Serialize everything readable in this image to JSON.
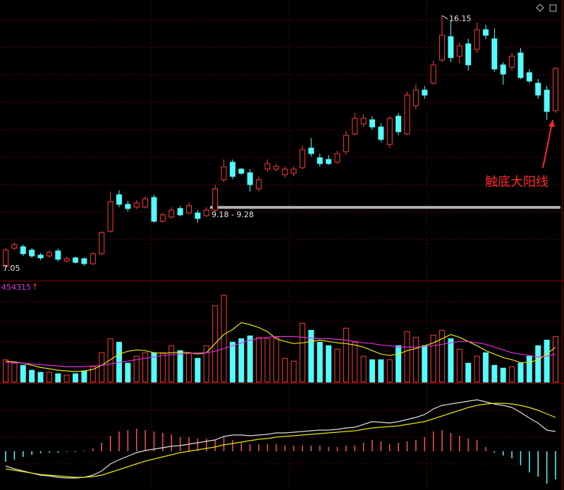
{
  "chart_data": [
    {
      "type": "candlestick",
      "open": [
        7.1,
        7.76,
        7.81,
        7.69,
        7.51,
        7.48,
        7.66,
        7.3,
        7.41,
        7.38,
        7.2,
        7.56,
        8.37,
        9.69,
        9.34,
        9.24,
        9.24,
        9.59,
        8.73,
        8.88,
        9.19,
        9.03,
        9.03,
        8.93,
        9.13,
        10.23,
        10.86,
        10.61,
        10.48,
        9.9,
        10.61,
        10.61,
        10.41,
        10.46,
        10.66,
        11.37,
        11.02,
        10.96,
        10.86,
        11.24,
        11.88,
        12.24,
        12.39,
        12.13,
        11.5,
        12.52,
        11.88,
        12.9,
        13.46,
        13.71,
        14.55,
        15.39,
        14.68,
        15.13,
        14.93,
        15.64,
        15.31,
        14.37,
        14.29,
        14.8,
        14.09,
        13.71,
        13.46,
        12.72
      ],
      "high": [
        7.76,
        7.97,
        7.89,
        7.76,
        7.58,
        7.69,
        7.74,
        7.46,
        7.46,
        7.43,
        7.61,
        8.37,
        9.8,
        9.85,
        9.47,
        9.49,
        9.64,
        9.69,
        9.03,
        9.24,
        9.29,
        9.41,
        9.13,
        9.24,
        10.05,
        10.96,
        10.96,
        10.66,
        10.61,
        10.35,
        10.96,
        10.81,
        10.71,
        10.71,
        11.47,
        11.73,
        11.17,
        11.12,
        11.27,
        11.98,
        12.64,
        12.59,
        12.52,
        12.26,
        12.52,
        12.64,
        13.41,
        13.66,
        13.61,
        14.52,
        16.15,
        15.95,
        15.18,
        15.31,
        15.9,
        15.82,
        15.69,
        14.47,
        14.8,
        14.98,
        14.22,
        13.86,
        13.61,
        14.29
      ],
      "low": [
        7.05,
        7.69,
        7.48,
        7.41,
        7.33,
        7.41,
        7.28,
        7.25,
        7.2,
        7.13,
        7.15,
        7.51,
        8.32,
        9.24,
        9.08,
        9.16,
        9.19,
        8.68,
        8.68,
        8.83,
        8.91,
        8.98,
        8.68,
        8.88,
        9.08,
        10.15,
        10.25,
        10.41,
        9.8,
        9.8,
        10.51,
        10.53,
        10.3,
        10.35,
        10.61,
        11.07,
        10.71,
        10.76,
        10.81,
        11.12,
        11.83,
        12.13,
        12.03,
        11.58,
        11.37,
        11.83,
        11.83,
        12.77,
        13.15,
        13.66,
        14.47,
        14.47,
        14.42,
        14.17,
        14.8,
        15.31,
        14.12,
        13.66,
        14.17,
        13.86,
        13.71,
        13.15,
        12.39,
        12.64
      ],
      "close": [
        7.69,
        7.89,
        7.56,
        7.48,
        7.41,
        7.61,
        7.36,
        7.38,
        7.25,
        7.2,
        7.56,
        8.32,
        9.44,
        9.34,
        9.19,
        9.39,
        9.54,
        8.73,
        8.96,
        9.13,
        8.96,
        9.29,
        8.83,
        9.13,
        9.9,
        10.69,
        10.35,
        10.46,
        10.05,
        10.23,
        10.81,
        10.71,
        10.61,
        10.61,
        11.32,
        11.17,
        10.81,
        10.81,
        11.17,
        11.83,
        12.44,
        12.44,
        12.13,
        11.68,
        12.44,
        11.96,
        13.28,
        13.46,
        13.28,
        14.37,
        15.44,
        14.63,
        15.06,
        14.37,
        15.64,
        15.44,
        14.22,
        14.04,
        14.68,
        13.91,
        13.79,
        13.28,
        12.69,
        14.24
      ],
      "ylim": [
        6.59,
        16.71
      ],
      "up_color": "#ff3b3b",
      "down_color": "#54fcfc",
      "max_label": 16.15,
      "min_label": 7.05,
      "band": {
        "low": 9.18,
        "high": 9.28,
        "label": "9.18 - 9.28",
        "color": "#b4b4b4"
      },
      "annotation": {
        "text": "触底大阳线",
        "color": "#ff2a2a"
      }
    },
    {
      "type": "bar",
      "values": [
        224000,
        189000,
        168000,
        119000,
        98000,
        98000,
        84000,
        70000,
        84000,
        112000,
        154000,
        294000,
        434000,
        399000,
        189000,
        259000,
        294000,
        294000,
        294000,
        364000,
        315000,
        294000,
        238000,
        364000,
        763000,
        868000,
        399000,
        434000,
        462000,
        448000,
        434000,
        448000,
        238000,
        210000,
        588000,
        518000,
        399000,
        364000,
        329000,
        539000,
        399000,
        259000,
        224000,
        224000,
        224000,
        364000,
        504000,
        448000,
        364000,
        469000,
        518000,
        434000,
        329000,
        189000,
        259000,
        294000,
        168000,
        140000,
        154000,
        189000,
        259000,
        364000,
        420000,
        454315
      ],
      "series": [
        {
          "color": "#e8e800",
          "values": [
            210000,
            203000,
            189000,
            168000,
            147000,
            133000,
            119000,
            112000,
            105000,
            112000,
            126000,
            168000,
            224000,
            280000,
            308000,
            322000,
            315000,
            294000,
            287000,
            294000,
            301000,
            294000,
            280000,
            294000,
            385000,
            476000,
            525000,
            595000,
            574000,
            546000,
            504000,
            434000,
            406000,
            385000,
            392000,
            406000,
            420000,
            406000,
            392000,
            385000,
            371000,
            350000,
            315000,
            280000,
            266000,
            280000,
            315000,
            336000,
            364000,
            392000,
            434000,
            476000,
            448000,
            406000,
            364000,
            315000,
            280000,
            245000,
            224000,
            196000,
            196000,
            224000,
            280000,
            350000
          ]
        },
        {
          "color": "#e030e0",
          "values": [
            196000,
            196000,
            189000,
            182000,
            175000,
            168000,
            161000,
            154000,
            154000,
            154000,
            161000,
            168000,
            182000,
            196000,
            210000,
            224000,
            238000,
            252000,
            266000,
            273000,
            280000,
            287000,
            294000,
            294000,
            308000,
            336000,
            364000,
            392000,
            420000,
            434000,
            448000,
            455000,
            455000,
            455000,
            448000,
            441000,
            434000,
            434000,
            427000,
            420000,
            406000,
            392000,
            385000,
            371000,
            364000,
            350000,
            350000,
            350000,
            357000,
            364000,
            378000,
            392000,
            406000,
            406000,
            392000,
            378000,
            350000,
            322000,
            294000,
            280000,
            266000,
            252000,
            259000,
            280000
          ]
        }
      ],
      "ylim": [
        0,
        1000000
      ],
      "label": 454315,
      "label_arrow": "↑",
      "label_color": "#e030e0"
    },
    {
      "type": "macd",
      "hist": [
        -0.15,
        -0.12,
        -0.08,
        -0.05,
        -0.03,
        -0.02,
        -0.02,
        -0.01,
        -0.01,
        0.01,
        0.04,
        0.12,
        0.22,
        0.28,
        0.3,
        0.32,
        0.3,
        0.28,
        0.26,
        0.24,
        0.2,
        0.2,
        0.18,
        0.18,
        0.16,
        0.2,
        0.16,
        0.12,
        0.1,
        0.1,
        0.1,
        0.1,
        0.08,
        0.08,
        0.08,
        0.08,
        0.08,
        0.06,
        0.06,
        0.08,
        0.08,
        0.12,
        0.16,
        0.14,
        0.1,
        0.12,
        0.14,
        0.16,
        0.2,
        0.28,
        0.3,
        0.26,
        0.22,
        0.18,
        0.16,
        0.06,
        -0.02,
        -0.06,
        -0.1,
        -0.2,
        -0.3,
        -0.36,
        -0.46,
        -0.4
      ],
      "series": [
        {
          "color": "#e0e0e0",
          "values": [
            -0.21,
            -0.25,
            -0.28,
            -0.31,
            -0.34,
            -0.35,
            -0.37,
            -0.38,
            -0.38,
            -0.37,
            -0.34,
            -0.28,
            -0.18,
            -0.12,
            -0.07,
            -0.02,
            0.01,
            0.03,
            0.05,
            0.07,
            0.08,
            0.1,
            0.12,
            0.14,
            0.16,
            0.21,
            0.23,
            0.23,
            0.22,
            0.23,
            0.24,
            0.26,
            0.26,
            0.27,
            0.28,
            0.29,
            0.3,
            0.3,
            0.31,
            0.33,
            0.34,
            0.38,
            0.42,
            0.41,
            0.4,
            0.42,
            0.45,
            0.48,
            0.52,
            0.6,
            0.65,
            0.67,
            0.69,
            0.71,
            0.73,
            0.7,
            0.67,
            0.65,
            0.62,
            0.55,
            0.47,
            0.4,
            0.3,
            0.28
          ]
        },
        {
          "color": "#e8e800",
          "values": [
            -0.25,
            -0.27,
            -0.29,
            -0.31,
            -0.33,
            -0.34,
            -0.35,
            -0.36,
            -0.37,
            -0.37,
            -0.36,
            -0.34,
            -0.3,
            -0.26,
            -0.22,
            -0.18,
            -0.14,
            -0.11,
            -0.08,
            -0.05,
            -0.02,
            0.0,
            0.02,
            0.04,
            0.06,
            0.09,
            0.11,
            0.13,
            0.15,
            0.17,
            0.18,
            0.2,
            0.21,
            0.22,
            0.23,
            0.24,
            0.25,
            0.26,
            0.27,
            0.28,
            0.29,
            0.31,
            0.33,
            0.34,
            0.35,
            0.36,
            0.38,
            0.4,
            0.42,
            0.46,
            0.5,
            0.54,
            0.58,
            0.62,
            0.65,
            0.67,
            0.68,
            0.68,
            0.67,
            0.65,
            0.62,
            0.58,
            0.53,
            0.48
          ]
        }
      ],
      "ylim": [
        -0.55,
        0.95
      ],
      "up_color": "#ff5050",
      "down_color": "#54fcfc"
    }
  ]
}
